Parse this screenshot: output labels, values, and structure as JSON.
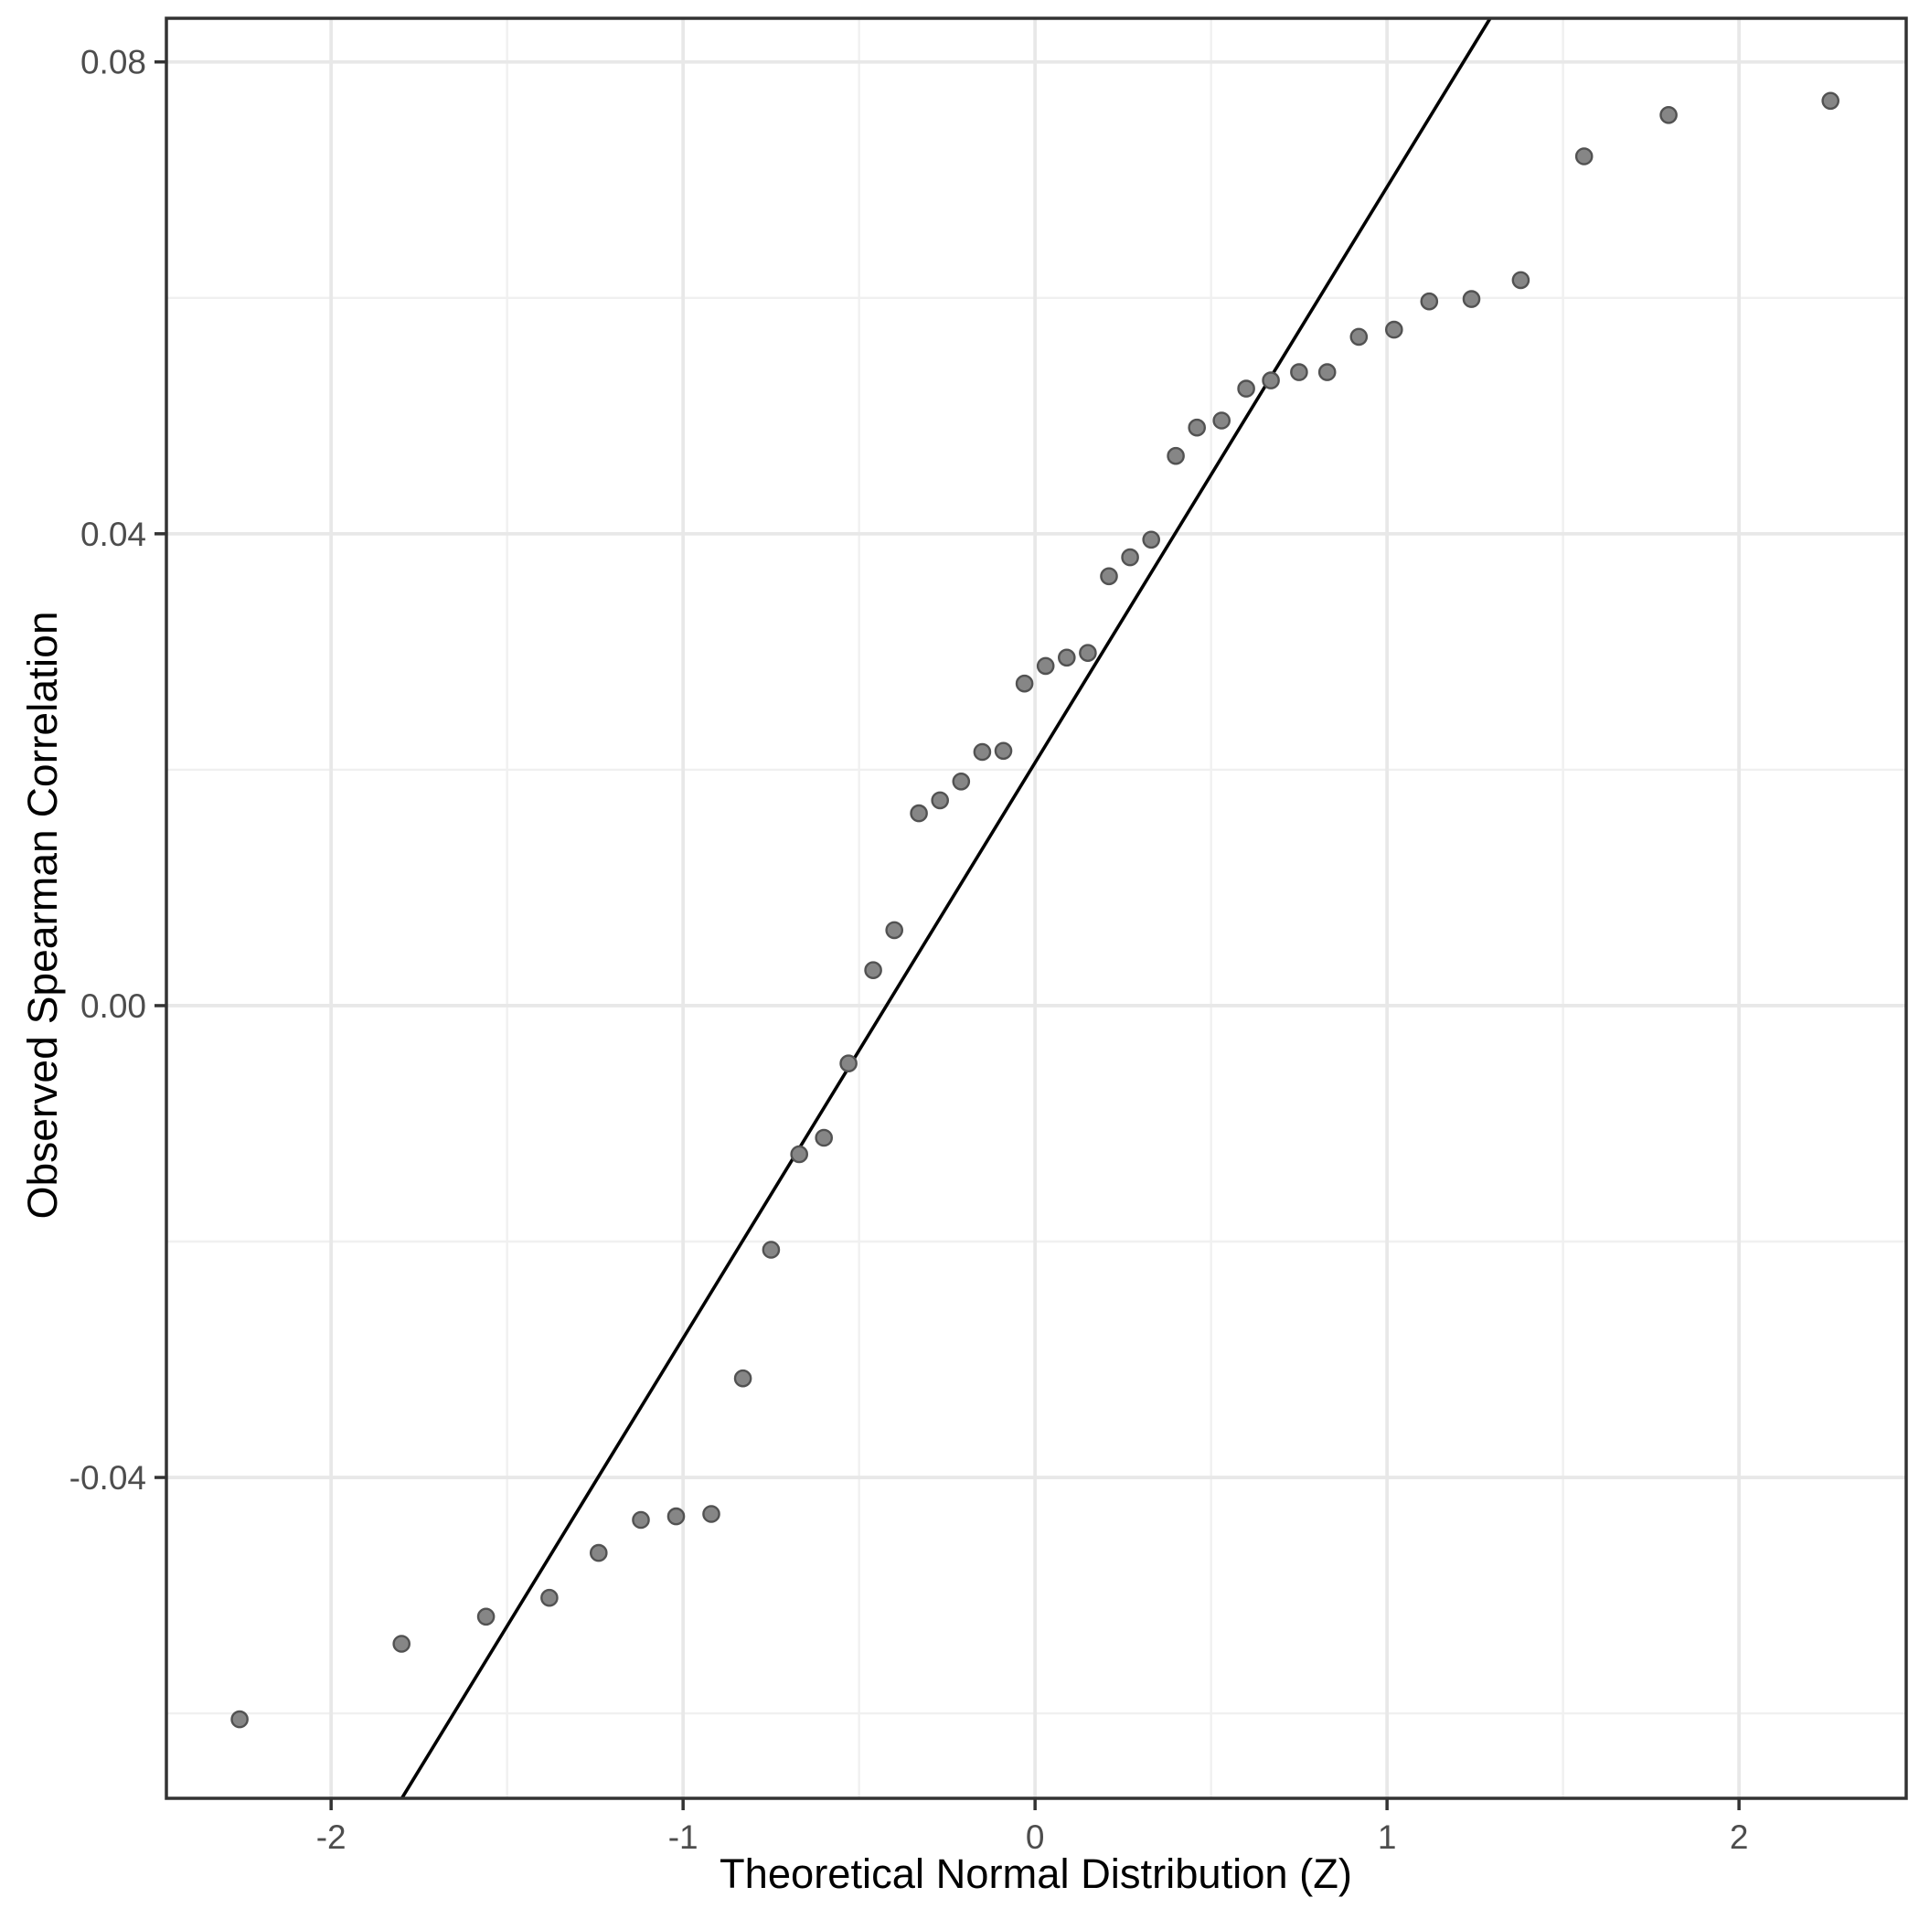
{
  "figure": {
    "background": "#FFFFFF",
    "panel_border_color": "#333333",
    "grid_major_color": "#E8E8E8",
    "grid_minor_color": "#F0F0F0",
    "tick_mark_color": "#333333",
    "tick_label_color": "#4D4D4D",
    "axis_title_color": "#000000",
    "point_fill": "#868686",
    "point_stroke": "#525252",
    "reference_line_color": "#000000"
  },
  "chart_data": {
    "type": "scatter",
    "title": "",
    "xlabel": "Theoretical Normal Distribution (Z)",
    "ylabel": "Observed Spearman Correlation",
    "xlim": [
      -2.468,
      2.475
    ],
    "ylim": [
      -0.0672,
      0.0837
    ],
    "grid": true,
    "legend": "none",
    "x_ticks": [
      {
        "value": -2,
        "label": "-2"
      },
      {
        "value": -1,
        "label": "-1"
      },
      {
        "value": 0,
        "label": "0"
      },
      {
        "value": 1,
        "label": "1"
      },
      {
        "value": 2,
        "label": "2"
      }
    ],
    "x_minor_ticks": [
      -1.5,
      -0.5,
      0.5,
      1.5
    ],
    "y_ticks": [
      {
        "value": 0.08,
        "label": "0.08"
      },
      {
        "value": 0.04,
        "label": "0.04"
      },
      {
        "value": 0.0,
        "label": "0.00"
      },
      {
        "value": -0.04,
        "label": "-0.04"
      }
    ],
    "y_minor_ticks": [
      0.06,
      0.02,
      -0.02,
      -0.06
    ],
    "reference_line": {
      "intercept": 0.0206,
      "slope": 0.0488
    },
    "points": [
      [
        -2.26,
        -0.0605
      ],
      [
        -1.8,
        -0.0541
      ],
      [
        -1.56,
        -0.0518
      ],
      [
        -1.38,
        -0.0502
      ],
      [
        -1.24,
        -0.0464
      ],
      [
        -1.12,
        -0.0436
      ],
      [
        -1.02,
        -0.0433
      ],
      [
        -0.92,
        -0.0431
      ],
      [
        -0.83,
        -0.0316
      ],
      [
        -0.75,
        -0.0207
      ],
      [
        -0.67,
        -0.0126
      ],
      [
        -0.6,
        -0.0112
      ],
      [
        -0.53,
        -0.0049
      ],
      [
        -0.46,
        0.003
      ],
      [
        -0.4,
        0.0064
      ],
      [
        -0.33,
        0.0163
      ],
      [
        -0.27,
        0.0174
      ],
      [
        -0.21,
        0.019
      ],
      [
        -0.15,
        0.0215
      ],
      [
        -0.09,
        0.0216
      ],
      [
        -0.03,
        0.0273
      ],
      [
        0.03,
        0.0288
      ],
      [
        0.09,
        0.0295
      ],
      [
        0.15,
        0.0299
      ],
      [
        0.21,
        0.0364
      ],
      [
        0.27,
        0.038
      ],
      [
        0.33,
        0.0395
      ],
      [
        0.4,
        0.0466
      ],
      [
        0.46,
        0.049
      ],
      [
        0.53,
        0.0496
      ],
      [
        0.6,
        0.0523
      ],
      [
        0.67,
        0.053
      ],
      [
        0.75,
        0.0537
      ],
      [
        0.83,
        0.0537
      ],
      [
        0.92,
        0.0567
      ],
      [
        1.02,
        0.0573
      ],
      [
        1.12,
        0.0597
      ],
      [
        1.24,
        0.0599
      ],
      [
        1.38,
        0.0615
      ],
      [
        1.56,
        0.072
      ],
      [
        1.8,
        0.0755
      ],
      [
        2.26,
        0.0767
      ]
    ]
  }
}
